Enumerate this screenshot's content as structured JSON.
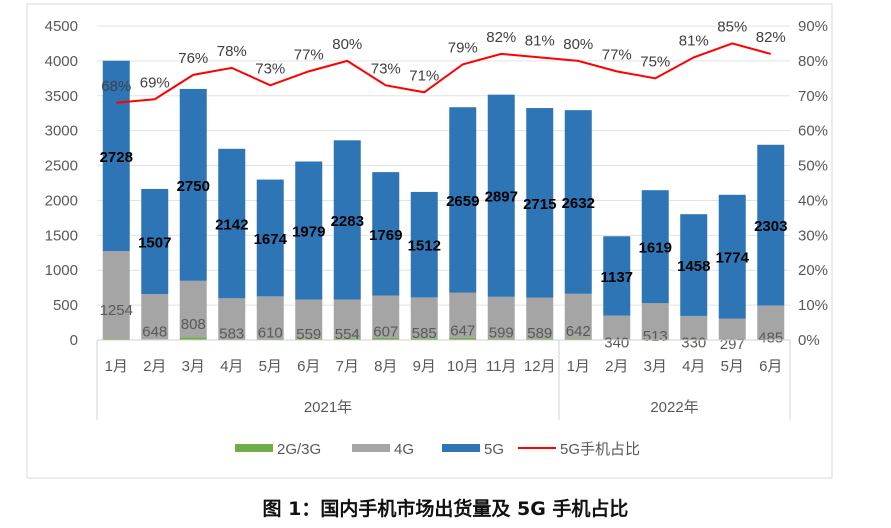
{
  "chart_data": {
    "type": "bar",
    "stacked": true,
    "title": "图 1：国内手机市场出货量及 5G 手机占比",
    "groups": [
      {
        "label": "2021年",
        "months": [
          "1月",
          "2月",
          "3月",
          "4月",
          "5月",
          "6月",
          "7月",
          "8月",
          "9月",
          "10月",
          "11月",
          "12月"
        ]
      },
      {
        "label": "2022年",
        "months": [
          "1月",
          "2月",
          "3月",
          "4月",
          "5月",
          "6月"
        ]
      }
    ],
    "series": [
      {
        "name": "2G/3G",
        "color": "#70ad47",
        "values": [
          20,
          10,
          40,
          15,
          15,
          20,
          25,
          30,
          25,
          30,
          20,
          20,
          20,
          10,
          15,
          15,
          10,
          10
        ]
      },
      {
        "name": "4G",
        "color": "#a5a5a5",
        "values": [
          1254,
          648,
          808,
          583,
          610,
          559,
          554,
          607,
          585,
          647,
          599,
          589,
          642,
          340,
          513,
          330,
          297,
          485
        ]
      },
      {
        "name": "5G",
        "color": "#2e75b6",
        "values": [
          2728,
          1507,
          2750,
          2142,
          1674,
          1979,
          2283,
          1769,
          1512,
          2659,
          2897,
          2715,
          2632,
          1137,
          1619,
          1458,
          1774,
          2303
        ]
      }
    ],
    "line": {
      "name": "5G手机占比",
      "color": "#ff0000",
      "values": [
        68,
        69,
        76,
        78,
        73,
        77,
        80,
        73,
        71,
        79,
        82,
        81,
        80,
        77,
        75,
        81,
        85,
        82
      ]
    },
    "ylim": [
      0,
      4500
    ],
    "yticks": [
      "0",
      "500",
      "1000",
      "1500",
      "2000",
      "2500",
      "3000",
      "3500",
      "4000",
      "4500"
    ],
    "y2lim": [
      0,
      90
    ],
    "y2ticks": [
      "0%",
      "10%",
      "20%",
      "30%",
      "40%",
      "50%",
      "60%",
      "70%",
      "80%",
      "90%"
    ],
    "legend_position": "bottom"
  }
}
